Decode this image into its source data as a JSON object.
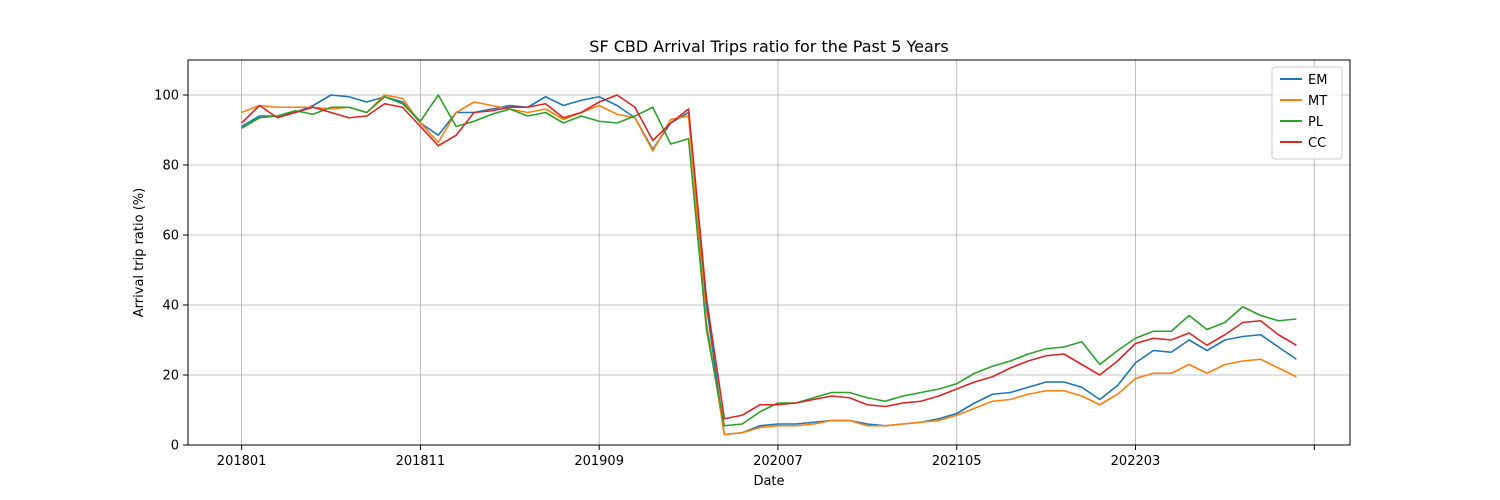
{
  "chart_data": {
    "type": "line",
    "title": "SF CBD Arrival Trips ratio for the Past 5 Years",
    "xlabel": "Date",
    "ylabel": "Arrival trip ratio (%)",
    "x_start_month": "2018-01",
    "x_step_months": 1,
    "xticks": [
      {
        "value": "2018-01",
        "label": "201801"
      },
      {
        "value": "2018-11",
        "label": "201811"
      },
      {
        "value": "2019-09",
        "label": "201909"
      },
      {
        "value": "2020-07",
        "label": "202007"
      },
      {
        "value": "2021-05",
        "label": "202105"
      },
      {
        "value": "2022-03",
        "label": "202203"
      },
      {
        "value": "2023-01",
        "label": ""
      }
    ],
    "xlim": [
      "2017-10",
      "2023-03"
    ],
    "ylim": [
      0,
      110
    ],
    "yticks": [
      0,
      20,
      40,
      60,
      80,
      100
    ],
    "grid": true,
    "legend_position": "top-right",
    "series": [
      {
        "name": "EM",
        "color": "#1f77b4",
        "values": [
          91,
          94,
          94,
          95,
          97,
          100,
          99.5,
          98,
          99.5,
          98,
          92,
          88.5,
          95,
          95,
          96,
          97,
          96.5,
          99.5,
          97,
          98.5,
          99.5,
          97,
          93.5,
          84.5,
          92,
          95,
          40,
          3,
          3.5,
          5.5,
          6,
          6,
          6.5,
          7,
          7,
          6,
          5.5,
          6,
          6.5,
          7.5,
          9,
          12,
          14.5,
          15,
          16.5,
          18,
          18,
          16.5,
          13,
          17,
          23.5,
          27,
          26.5,
          30,
          27,
          30,
          31,
          31.5,
          28,
          24.5
        ]
      },
      {
        "name": "MT",
        "color": "#ff7f0e",
        "values": [
          95,
          97,
          96.5,
          96.5,
          96.5,
          96,
          96.5,
          95,
          100,
          99,
          92,
          86.5,
          95,
          98,
          97,
          96,
          95,
          96,
          93,
          95,
          97,
          94.5,
          93.5,
          84,
          93,
          94,
          35,
          3,
          3.5,
          5,
          5.5,
          5.5,
          6,
          7,
          7,
          5.5,
          5.5,
          6,
          6.5,
          7,
          8.5,
          10.5,
          12.5,
          13,
          14.5,
          15.5,
          15.5,
          14,
          11.5,
          14.5,
          19,
          20.5,
          20.5,
          23,
          20.5,
          23,
          24,
          24.5,
          22,
          19.5
        ]
      },
      {
        "name": "PL",
        "color": "#2ca02c",
        "values": [
          90.5,
          93.5,
          94,
          95.5,
          94.5,
          96.5,
          96.5,
          95,
          99.5,
          97.5,
          92.5,
          100,
          91,
          92.5,
          94.5,
          96,
          94,
          95,
          92,
          94,
          92.5,
          92,
          94,
          96.5,
          86,
          87.5,
          33,
          5.5,
          6,
          9.5,
          12,
          12,
          13.5,
          15,
          15,
          13.5,
          12.5,
          14,
          15,
          16,
          17.5,
          20.5,
          22.5,
          24,
          26,
          27.5,
          28,
          29.5,
          23,
          27,
          30.5,
          32.5,
          32.5,
          37,
          33,
          35,
          39.5,
          37,
          35.5,
          36
        ]
      },
      {
        "name": "CC",
        "color": "#d62728",
        "values": [
          92,
          97,
          93.5,
          95,
          96.5,
          95,
          93.5,
          94,
          97.5,
          96.5,
          91,
          85.5,
          88.5,
          95,
          95.5,
          96.5,
          96.5,
          97.5,
          93.5,
          95,
          98,
          100,
          96.5,
          87,
          92,
          96,
          42,
          7.5,
          8.5,
          11.5,
          11.5,
          12,
          13,
          14,
          13.5,
          11.5,
          11,
          12,
          12.5,
          14,
          16,
          18,
          19.5,
          22,
          24,
          25.5,
          26,
          23,
          20,
          24,
          29,
          30.5,
          30,
          32,
          28.5,
          31.5,
          35,
          35.5,
          31.5,
          28.5
        ]
      }
    ]
  }
}
